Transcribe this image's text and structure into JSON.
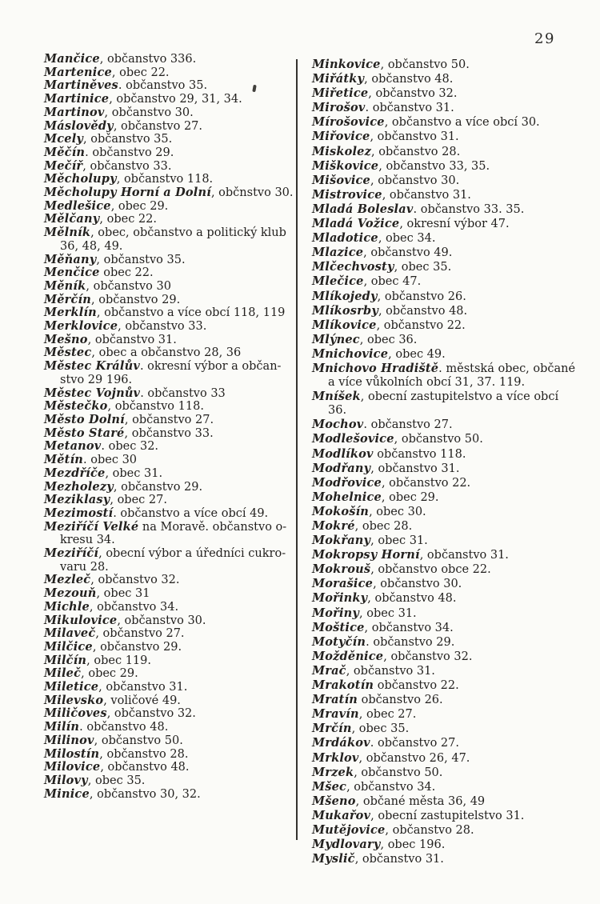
{
  "page": {
    "number": "29"
  },
  "colors": {
    "paper": "#fbfbf8",
    "ink": "#23211f",
    "rule": "#34322f"
  },
  "index": {
    "left": [
      {
        "h": "Mančice",
        "t": ", občanstvo 336."
      },
      {
        "h": "Martenice",
        "t": ", obec 22."
      },
      {
        "h": "Martiněves",
        "t": ". občanstvo 35."
      },
      {
        "h": "Martinice",
        "t": ", občanstvo 29, 31, 34."
      },
      {
        "h": "Martinov",
        "t": ", občanstvo 30."
      },
      {
        "h": "Máslovědy",
        "t": ", občanstvo 27."
      },
      {
        "h": "Mcely",
        "t": ", občanstvo 35."
      },
      {
        "h": "Měčín",
        "t": ". občanstvo 29."
      },
      {
        "h": "Mečíř",
        "t": ", občanstvo 33."
      },
      {
        "h": "Měcholupy",
        "t": ", občanstvo 118."
      },
      {
        "h": "Měcholupy Horní a Dolní",
        "t": ", občnstvo 30."
      },
      {
        "h": "Medlešice",
        "t": ", obec 29."
      },
      {
        "h": "Mělčany",
        "t": ", obec 22."
      },
      {
        "h": "Mělník",
        "t": ", obec, občanstvo a politický klub",
        "c": [
          "36, 48, 49."
        ]
      },
      {
        "h": "Měňany",
        "t": ", občanstvo 35."
      },
      {
        "h": "Menčice",
        "t": " obec 22."
      },
      {
        "h": "Měník",
        "t": ", občanstvo 30"
      },
      {
        "h": "Měrčín",
        "t": ", občanstvo 29."
      },
      {
        "h": "Merklín",
        "t": ", občanstvo a více obcí 118, 119"
      },
      {
        "h": "Merklovice",
        "t": ", občanstvo 33."
      },
      {
        "h": "Mešno",
        "t": ", občanstvo 31."
      },
      {
        "h": "Městec",
        "t": ", obec a občanstvo 28, 36"
      },
      {
        "h": "Městec Králův",
        "t": ". okresní výbor a občan-",
        "c": [
          "stvo 29 196."
        ]
      },
      {
        "h": "Městec Vojnův",
        "t": ". občanstvo 33"
      },
      {
        "h": "Městečko",
        "t": ", občanstvo 118."
      },
      {
        "h": "Město Dolní",
        "t": ", občanstvo 27."
      },
      {
        "h": "Město Staré",
        "t": ", občanstvo 33."
      },
      {
        "h": "Metanov",
        "t": ". obec 32."
      },
      {
        "h": "Mětín",
        "t": ". obec 30"
      },
      {
        "h": "Mezdříče",
        "t": ", obec 31."
      },
      {
        "h": "Mezholezy",
        "t": ", občanstvo 29."
      },
      {
        "h": "Meziklasy",
        "t": ", obec 27."
      },
      {
        "h": "Mezimostí",
        "t": ". občanstvo a více obcí 49."
      },
      {
        "h": "Meziříčí Velké",
        "t": " na Moravě. občanstvo o-",
        "c": [
          "kresu 34."
        ]
      },
      {
        "h": "Meziříčí",
        "t": ", obecní výbor a úředníci cukro-",
        "c": [
          "varu 28."
        ]
      },
      {
        "h": "Mezleč",
        "t": ", občanstvo 32."
      },
      {
        "h": "Mezouň",
        "t": ", obec 31"
      },
      {
        "h": "Michle",
        "t": ", občanstvo 34."
      },
      {
        "h": "Mikulovice",
        "t": ", občanstvo 30."
      },
      {
        "h": "Milaveč",
        "t": ", občanstvo 27."
      },
      {
        "h": "Milčice",
        "t": ", občanstvo 29."
      },
      {
        "h": "Milčín",
        "t": ", obec 119."
      },
      {
        "h": "Mileč",
        "t": ", obec 29."
      },
      {
        "h": "Miletice",
        "t": ", občanstvo 31."
      },
      {
        "h": "Milevsko",
        "t": ", voličové 49."
      },
      {
        "h": "Miličoves",
        "t": ", občanstvo 32."
      },
      {
        "h": "Milín",
        "t": ". občanstvo 48."
      },
      {
        "h": "Milinov",
        "t": ", občanstvo 50."
      },
      {
        "h": "Milostín",
        "t": ", občanstvo 28."
      },
      {
        "h": "Milovice",
        "t": ", občanstvo 48."
      },
      {
        "h": "Milovy",
        "t": ", obec 35."
      },
      {
        "h": "Minice",
        "t": ", občanstvo 30, 32."
      }
    ],
    "right": [
      {
        "h": "Minkovice",
        "t": ", občanstvo 50."
      },
      {
        "h": "Miřátky",
        "t": ", občanstvo 48."
      },
      {
        "h": "Miřetice",
        "t": ", občanstvo 32."
      },
      {
        "h": "Mirošov",
        "t": ". občanstvo 31."
      },
      {
        "h": "Mírošovice",
        "t": ", občanstvo a více obcí 30."
      },
      {
        "h": "Miřovice",
        "t": ", občanstvo 31."
      },
      {
        "h": "Miskolez",
        "t": ", občanstvo 28."
      },
      {
        "h": "Miškovice",
        "t": ", občanstvo 33, 35."
      },
      {
        "h": "Mišovice",
        "t": ", občanstvo 30."
      },
      {
        "h": "Mistrovice",
        "t": ", občanstvo 31."
      },
      {
        "h": "Mladá Boleslav",
        "t": ". občanstvo 33. 35."
      },
      {
        "h": "Mladá Vožice",
        "t": ", okresní výbor 47."
      },
      {
        "h": "Mladotice",
        "t": ", obec 34."
      },
      {
        "h": "Mlazice",
        "t": ", občanstvo 49."
      },
      {
        "h": "Mlčechvosty",
        "t": ", obec 35."
      },
      {
        "h": "Mlečice",
        "t": ", obec 47."
      },
      {
        "h": "Mlíkojedy",
        "t": ", občanstvo 26."
      },
      {
        "h": "Mlíkosrby",
        "t": ", občanstvo 48."
      },
      {
        "h": "Mlíkovice",
        "t": ", občanstvo 22."
      },
      {
        "h": "Mlýnec",
        "t": ", obec 36."
      },
      {
        "h": "Mnichovice",
        "t": ", obec 49."
      },
      {
        "h": "Mnichovo Hradiště",
        "t": ". městská obec, občané",
        "c": [
          "a více vůkolních obcí 31, 37. 119."
        ]
      },
      {
        "h": "Mníšek",
        "t": ", obecní zastupitelstvo a více obcí",
        "c": [
          "36."
        ]
      },
      {
        "h": "Mochov",
        "t": ". občanstvo 27."
      },
      {
        "h": "Modlešovice",
        "t": ", občanstvo 50."
      },
      {
        "h": "Modlíkov",
        "t": " občanstvo 118."
      },
      {
        "h": "Modřany",
        "t": ", občanstvo 31."
      },
      {
        "h": "Modřovice",
        "t": ", občanstvo 22."
      },
      {
        "h": "Mohelnice",
        "t": ", obec 29."
      },
      {
        "h": "Mokošín",
        "t": ", obec 30."
      },
      {
        "h": "Mokré",
        "t": ", obec 28."
      },
      {
        "h": "Mokřany",
        "t": ", obec 31."
      },
      {
        "h": "Mokropsy Horní",
        "t": ", občanstvo 31."
      },
      {
        "h": "Mokrouš",
        "t": ", občanstvo obce 22."
      },
      {
        "h": "Morašice",
        "t": ", občanstvo 30."
      },
      {
        "h": "Mořinky",
        "t": ", občanstvo 48."
      },
      {
        "h": "Mořiny",
        "t": ", obec 31."
      },
      {
        "h": "Moštice",
        "t": ", občanstvo 34."
      },
      {
        "h": "Motyčín",
        "t": ". občanstvo 29."
      },
      {
        "h": "Možděnice",
        "t": ", občanstvo 32."
      },
      {
        "h": "Mrač",
        "t": ", občanstvo 31."
      },
      {
        "h": "Mrakotín",
        "t": " občanstvo 22."
      },
      {
        "h": "Mratín",
        "t": " občanstvo 26."
      },
      {
        "h": "Mravín",
        "t": ", obec 27."
      },
      {
        "h": "Mrčín",
        "t": ", obec 35."
      },
      {
        "h": "Mrdákov",
        "t": ". občanstvo 27."
      },
      {
        "h": "Mrklov",
        "t": ", občanstvo 26, 47."
      },
      {
        "h": "Mrzek",
        "t": ", občanstvo 50."
      },
      {
        "h": "Mšec",
        "t": ", občanstvo 34."
      },
      {
        "h": "Mšeno",
        "t": ", občané města 36, 49"
      },
      {
        "h": "Mukařov",
        "t": ", obecní zastupitelstvo 31."
      },
      {
        "h": "Mutějovice",
        "t": ", občanstvo 28."
      },
      {
        "h": "Mydlovary",
        "t": ", obec 196."
      },
      {
        "h": "Myslič",
        "t": ", občanstvo 31."
      }
    ]
  }
}
